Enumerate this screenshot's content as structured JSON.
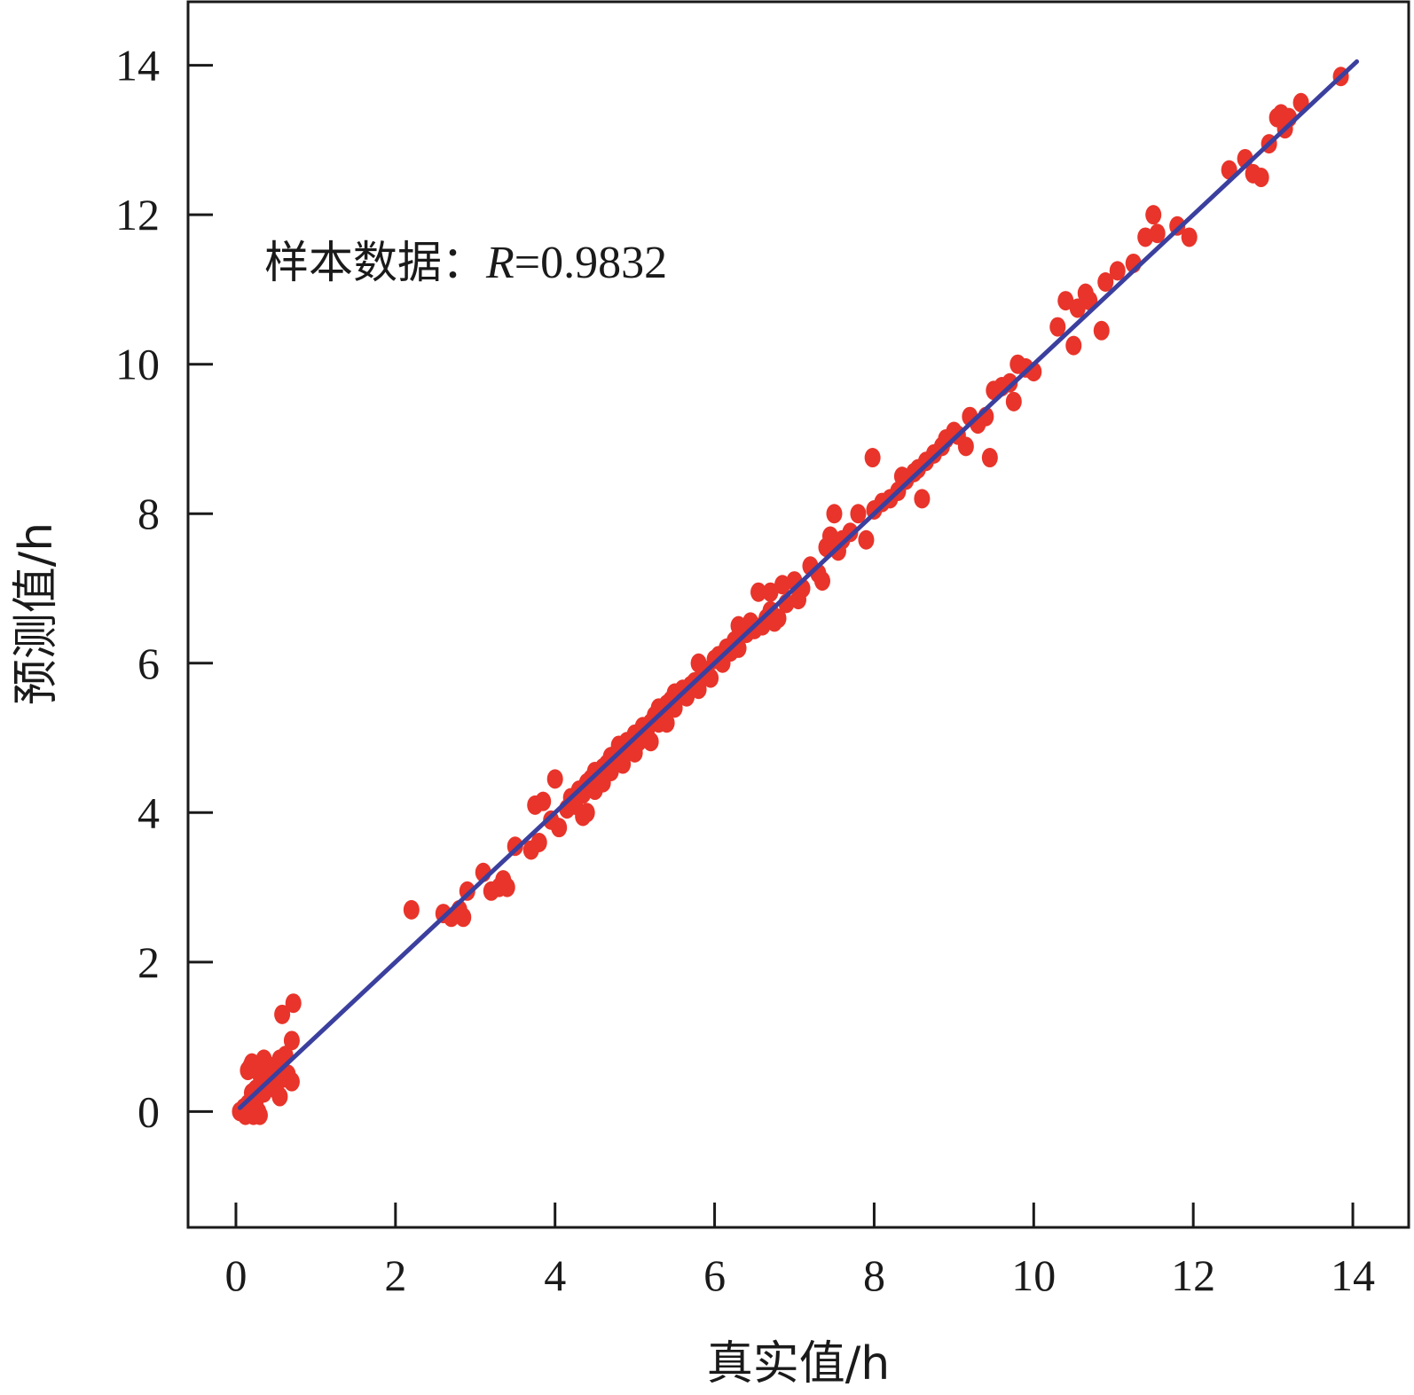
{
  "chart_data": {
    "type": "scatter",
    "title": "",
    "xlabel": "真实值/h",
    "ylabel": "预测值/h",
    "xlim": [
      -0.6,
      14.7
    ],
    "ylim": [
      -1.55,
      14.85
    ],
    "xticks": [
      0,
      2,
      4,
      6,
      8,
      10,
      12,
      14
    ],
    "yticks": [
      0,
      2,
      4,
      6,
      8,
      10,
      12,
      14
    ],
    "xtick_labels": [
      "0",
      "2",
      "4",
      "6",
      "8",
      "10",
      "12",
      "14"
    ],
    "ytick_labels": [
      "0",
      "2",
      "4",
      "6",
      "8",
      "10",
      "12",
      "14"
    ],
    "grid": false,
    "annotation": {
      "prefix": "样本数据：",
      "symbol": "R",
      "equals": "=",
      "value": "0.9832"
    },
    "fit_line": {
      "x": [
        0.05,
        14.05
      ],
      "y": [
        0.05,
        14.05
      ],
      "color": "#3b3f9e"
    },
    "point_color": "#e8342a",
    "series": [
      {
        "points": [
          [
            0.05,
            0.0
          ],
          [
            0.1,
            0.05
          ],
          [
            0.12,
            -0.05
          ],
          [
            0.15,
            0.1
          ],
          [
            0.18,
            0.0
          ],
          [
            0.2,
            0.25
          ],
          [
            0.22,
            -0.05
          ],
          [
            0.25,
            0.15
          ],
          [
            0.28,
            0.0
          ],
          [
            0.3,
            -0.05
          ],
          [
            0.15,
            0.55
          ],
          [
            0.2,
            0.65
          ],
          [
            0.18,
            0.6
          ],
          [
            0.25,
            0.3
          ],
          [
            0.3,
            0.5
          ],
          [
            0.35,
            0.7
          ],
          [
            0.4,
            0.4
          ],
          [
            0.45,
            0.6
          ],
          [
            0.5,
            0.3
          ],
          [
            0.55,
            0.7
          ],
          [
            0.55,
            0.2
          ],
          [
            0.6,
            0.45
          ],
          [
            0.65,
            0.5
          ],
          [
            0.7,
            0.95
          ],
          [
            0.7,
            0.4
          ],
          [
            0.58,
            1.3
          ],
          [
            0.72,
            1.45
          ],
          [
            0.35,
            0.25
          ],
          [
            0.48,
            0.55
          ],
          [
            0.62,
            0.75
          ],
          [
            2.2,
            2.7
          ],
          [
            2.6,
            2.65
          ],
          [
            2.7,
            2.6
          ],
          [
            2.8,
            2.7
          ],
          [
            2.85,
            2.6
          ],
          [
            2.9,
            2.95
          ],
          [
            3.1,
            3.2
          ],
          [
            3.2,
            2.95
          ],
          [
            3.3,
            3.0
          ],
          [
            3.35,
            3.1
          ],
          [
            3.4,
            3.0
          ],
          [
            3.5,
            3.55
          ],
          [
            3.7,
            3.5
          ],
          [
            3.8,
            3.6
          ],
          [
            3.75,
            4.1
          ],
          [
            3.85,
            4.15
          ],
          [
            3.95,
            3.9
          ],
          [
            4.0,
            4.45
          ],
          [
            4.05,
            3.8
          ],
          [
            4.15,
            4.05
          ],
          [
            4.2,
            4.2
          ],
          [
            4.25,
            4.1
          ],
          [
            4.3,
            4.3
          ],
          [
            4.35,
            4.25
          ],
          [
            4.35,
            3.95
          ],
          [
            4.4,
            4.0
          ],
          [
            4.4,
            4.4
          ],
          [
            4.45,
            4.45
          ],
          [
            4.5,
            4.3
          ],
          [
            4.5,
            4.55
          ],
          [
            4.55,
            4.5
          ],
          [
            4.6,
            4.6
          ],
          [
            4.6,
            4.4
          ],
          [
            4.65,
            4.65
          ],
          [
            4.7,
            4.55
          ],
          [
            4.7,
            4.75
          ],
          [
            4.75,
            4.7
          ],
          [
            4.8,
            4.8
          ],
          [
            4.8,
            4.9
          ],
          [
            4.85,
            4.65
          ],
          [
            4.9,
            4.85
          ],
          [
            4.9,
            4.95
          ],
          [
            4.95,
            4.9
          ],
          [
            5.0,
            5.05
          ],
          [
            5.0,
            4.8
          ],
          [
            5.05,
            4.95
          ],
          [
            5.1,
            5.15
          ],
          [
            5.1,
            5.0
          ],
          [
            5.15,
            5.1
          ],
          [
            5.2,
            5.2
          ],
          [
            5.2,
            4.95
          ],
          [
            5.25,
            5.3
          ],
          [
            5.3,
            5.2
          ],
          [
            5.3,
            5.4
          ],
          [
            5.35,
            5.3
          ],
          [
            5.4,
            5.45
          ],
          [
            5.4,
            5.2
          ],
          [
            5.45,
            5.5
          ],
          [
            5.5,
            5.4
          ],
          [
            5.5,
            5.6
          ],
          [
            5.55,
            5.55
          ],
          [
            5.6,
            5.65
          ],
          [
            5.65,
            5.55
          ],
          [
            5.7,
            5.7
          ],
          [
            5.75,
            5.75
          ],
          [
            5.8,
            5.65
          ],
          [
            5.85,
            5.85
          ],
          [
            5.9,
            5.9
          ],
          [
            5.95,
            5.8
          ],
          [
            6.0,
            6.05
          ],
          [
            5.8,
            6.0
          ],
          [
            6.05,
            6.1
          ],
          [
            6.1,
            6.0
          ],
          [
            6.15,
            6.2
          ],
          [
            6.2,
            6.15
          ],
          [
            6.25,
            6.3
          ],
          [
            6.3,
            6.2
          ],
          [
            6.3,
            6.5
          ],
          [
            6.4,
            6.4
          ],
          [
            6.45,
            6.55
          ],
          [
            6.5,
            6.45
          ],
          [
            6.55,
            6.95
          ],
          [
            6.6,
            6.5
          ],
          [
            6.65,
            6.6
          ],
          [
            6.7,
            6.7
          ],
          [
            6.7,
            6.95
          ],
          [
            6.75,
            6.55
          ],
          [
            6.8,
            6.6
          ],
          [
            6.85,
            7.05
          ],
          [
            6.9,
            6.8
          ],
          [
            7.0,
            7.1
          ],
          [
            7.05,
            6.85
          ],
          [
            7.1,
            7.0
          ],
          [
            7.2,
            7.3
          ],
          [
            7.3,
            7.2
          ],
          [
            7.35,
            7.1
          ],
          [
            7.4,
            7.55
          ],
          [
            7.45,
            7.7
          ],
          [
            7.5,
            8.0
          ],
          [
            7.55,
            7.5
          ],
          [
            7.6,
            7.65
          ],
          [
            7.7,
            7.75
          ],
          [
            7.8,
            8.0
          ],
          [
            7.9,
            7.65
          ],
          [
            8.0,
            8.05
          ],
          [
            7.98,
            8.75
          ],
          [
            8.1,
            8.15
          ],
          [
            8.2,
            8.2
          ],
          [
            8.3,
            8.3
          ],
          [
            8.35,
            8.5
          ],
          [
            8.4,
            8.45
          ],
          [
            8.5,
            8.55
          ],
          [
            8.55,
            8.6
          ],
          [
            8.6,
            8.2
          ],
          [
            8.65,
            8.7
          ],
          [
            8.75,
            8.8
          ],
          [
            8.85,
            8.9
          ],
          [
            8.9,
            9.0
          ],
          [
            9.0,
            9.1
          ],
          [
            9.05,
            9.05
          ],
          [
            9.15,
            8.9
          ],
          [
            9.2,
            9.3
          ],
          [
            9.3,
            9.2
          ],
          [
            9.4,
            9.3
          ],
          [
            9.45,
            8.75
          ],
          [
            9.5,
            9.65
          ],
          [
            9.6,
            9.7
          ],
          [
            9.7,
            9.75
          ],
          [
            9.75,
            9.5
          ],
          [
            9.8,
            10.0
          ],
          [
            9.9,
            9.95
          ],
          [
            10.0,
            9.9
          ],
          [
            10.3,
            10.5
          ],
          [
            10.4,
            10.85
          ],
          [
            10.5,
            10.25
          ],
          [
            10.55,
            10.75
          ],
          [
            10.65,
            10.95
          ],
          [
            10.7,
            10.85
          ],
          [
            10.85,
            10.45
          ],
          [
            10.9,
            11.1
          ],
          [
            11.05,
            11.25
          ],
          [
            11.25,
            11.35
          ],
          [
            11.4,
            11.7
          ],
          [
            11.5,
            12.0
          ],
          [
            11.55,
            11.75
          ],
          [
            11.8,
            11.85
          ],
          [
            11.95,
            11.7
          ],
          [
            12.45,
            12.6
          ],
          [
            12.65,
            12.75
          ],
          [
            12.75,
            12.55
          ],
          [
            12.85,
            12.5
          ],
          [
            12.95,
            12.95
          ],
          [
            13.05,
            13.3
          ],
          [
            13.1,
            13.35
          ],
          [
            13.15,
            13.15
          ],
          [
            13.2,
            13.3
          ],
          [
            13.35,
            13.5
          ],
          [
            13.85,
            13.85
          ]
        ]
      }
    ]
  }
}
